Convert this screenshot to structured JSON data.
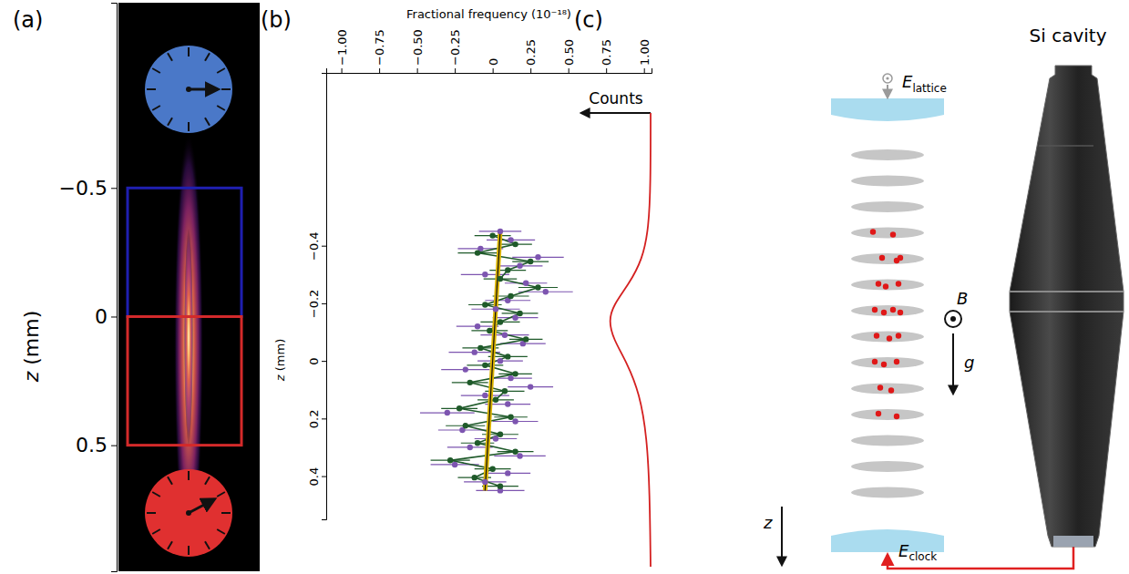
{
  "chart_data": {
    "type": "scatter",
    "x_label": "Fractional frequency (10⁻¹⁸)",
    "y_label": "z (mm)",
    "xlim": [
      -1.1,
      1.05
    ],
    "xticks": [
      {
        "value": -1,
        "label": "−1.00"
      },
      {
        "value": -0.75,
        "label": "−0.75"
      },
      {
        "value": -0.5,
        "label": "−0.50"
      },
      {
        "value": -0.25,
        "label": "−0.25"
      },
      0,
      0.25,
      {
        "value": 0.5,
        "label": "0.50"
      },
      0.75,
      {
        "value": 1,
        "label": "1.00"
      }
    ],
    "ylim": [
      -1.0,
      0.55
    ],
    "yticks": [
      {
        "value": -0.4,
        "label": "−0.4"
      },
      {
        "value": -0.2,
        "label": "−0.2"
      },
      0,
      0.2,
      0.4
    ],
    "grid": false,
    "series": [
      {
        "type": "scatter",
        "color": "#7d55b0",
        "marker": "circle",
        "z": [
          -0.45,
          -0.42,
          -0.39,
          -0.36,
          -0.33,
          -0.3,
          -0.27,
          -0.24,
          -0.21,
          -0.18,
          -0.15,
          -0.12,
          -0.09,
          -0.06,
          -0.03,
          0,
          0.03,
          0.06,
          0.09,
          0.12,
          0.15,
          0.18,
          0.21,
          0.24,
          0.27,
          0.3,
          0.33,
          0.36,
          0.39,
          0.42,
          0.45
        ],
        "values": [
          0.05,
          0.12,
          -0.08,
          0.3,
          0.18,
          -0.05,
          0.22,
          0.35,
          0.1,
          0.02,
          0.15,
          -0.1,
          0.08,
          0.2,
          -0.12,
          0.05,
          -0.18,
          0.12,
          0.25,
          -0.05,
          0.1,
          -0.3,
          0.15,
          -0.2,
          0.02,
          -0.15,
          0.18,
          -0.25,
          0.1,
          -0.05,
          0.05
        ],
        "errors": [
          0.14,
          0.16,
          0.15,
          0.17,
          0.15,
          0.16,
          0.14,
          0.18,
          0.15,
          0.16,
          0.15,
          0.14,
          0.16,
          0.15,
          0.17,
          0.15,
          0.16,
          0.14,
          0.15,
          0.16,
          0.15,
          0.18,
          0.15,
          0.16,
          0.14,
          0.15,
          0.17,
          0.16,
          0.15,
          0.14,
          0.16
        ]
      },
      {
        "type": "line",
        "color": "#1f5a2a",
        "marker": "circle",
        "line_style": "solid",
        "z": [
          -0.435,
          -0.405,
          -0.375,
          -0.345,
          -0.315,
          -0.285,
          -0.255,
          -0.225,
          -0.195,
          -0.165,
          -0.135,
          -0.105,
          -0.075,
          -0.045,
          -0.015,
          0.015,
          0.045,
          0.075,
          0.105,
          0.135,
          0.165,
          0.195,
          0.225,
          0.255,
          0.285,
          0.315,
          0.345,
          0.375,
          0.405,
          0.435
        ],
        "values": [
          0.0,
          0.15,
          -0.1,
          0.25,
          0.1,
          0.05,
          0.3,
          0.12,
          -0.05,
          0.18,
          0.05,
          -0.02,
          0.22,
          -0.08,
          0.1,
          -0.05,
          0.15,
          -0.15,
          0.08,
          0.02,
          -0.22,
          0.12,
          -0.18,
          0.05,
          -0.1,
          0.15,
          -0.28,
          0.0,
          -0.12,
          0.05
        ],
        "errors": [
          0.12,
          0.11,
          0.13,
          0.12,
          0.12,
          0.11,
          0.13,
          0.12,
          0.11,
          0.12,
          0.13,
          0.12,
          0.11,
          0.12,
          0.13,
          0.12,
          0.11,
          0.12,
          0.13,
          0.12,
          0.12,
          0.11,
          0.13,
          0.12,
          0.11,
          0.12,
          0.13,
          0.12,
          0.11,
          0.12
        ]
      },
      {
        "type": "line",
        "color": "#dcb400",
        "line_style": "solid",
        "z": [
          -0.45,
          0.45
        ],
        "values": [
          0.05,
          -0.05
        ]
      }
    ]
  },
  "figure": {
    "panel_labels": [
      "(a)",
      "(b)",
      "(c)"
    ],
    "panel_a": {
      "axis_title": "z (mm)",
      "range": [
        -1.22,
        0.99
      ],
      "ticks": [
        {
          "value": -0.5,
          "label": "−0.5"
        },
        0,
        0.5
      ],
      "regions": [
        {
          "from": -0.5,
          "to": 0,
          "color": "#1f1fb0"
        },
        {
          "from": 0,
          "to": 0.5,
          "color": "#d42a2a"
        }
      ],
      "clocks": [
        {
          "color": "#4a78c8"
        },
        {
          "color": "#e03030"
        }
      ]
    },
    "panel_c": {
      "counts": "Counts",
      "lattice_field": {
        "symbol": "E",
        "subscript": "lattice"
      },
      "magnetic_field": "B",
      "gravity": "g",
      "axis": "z",
      "clock_field": {
        "symbol": "E",
        "subscript": "clock"
      },
      "cavity": "Si cavity"
    }
  }
}
